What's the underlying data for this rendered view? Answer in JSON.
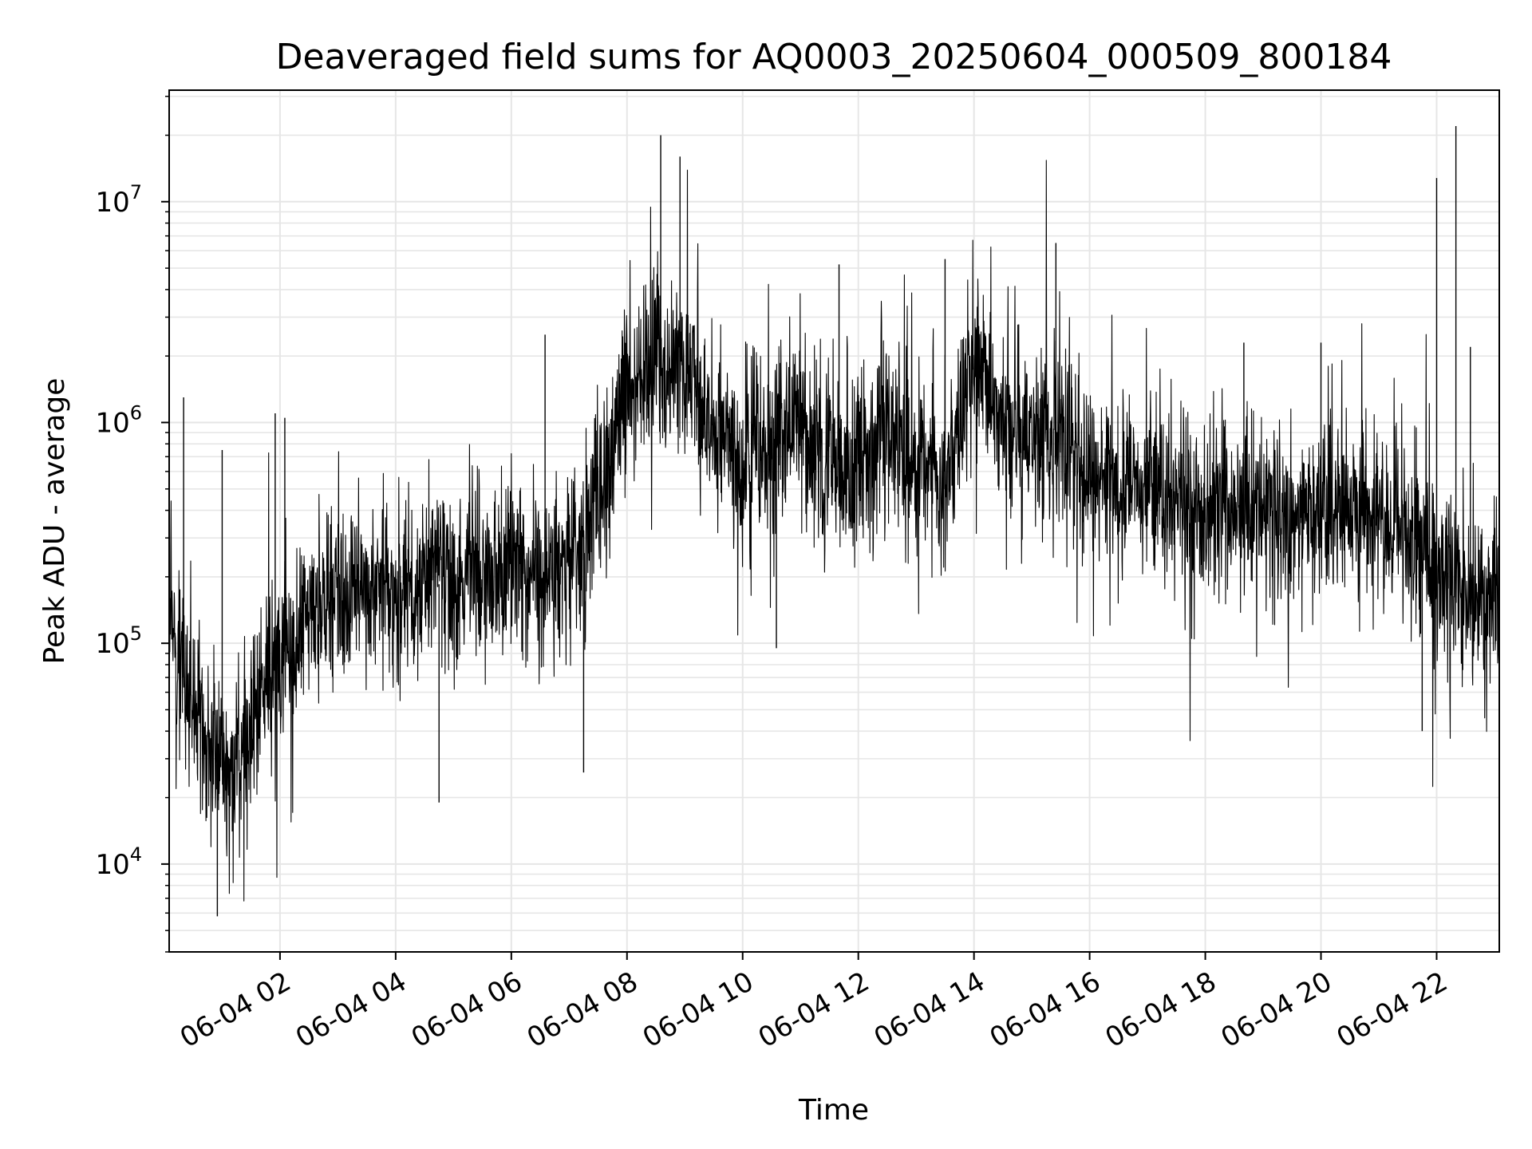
{
  "chart_data": {
    "type": "line",
    "title": "Deaveraged field sums for AQ0003_20250604_000509_800184",
    "xlabel": "Time",
    "ylabel": "Peak ADU - average",
    "yscale": "log",
    "ylim": [
      4000,
      32000000
    ],
    "xlim": [
      "2025-06-04 00:05",
      "2025-06-04 23:05"
    ],
    "grid": true,
    "line_color": "#000000",
    "grid_color": "#e6e6e6",
    "x_tick_labels": [
      "06-04 02",
      "06-04 04",
      "06-04 06",
      "06-04 08",
      "06-04 10",
      "06-04 12",
      "06-04 14",
      "06-04 16",
      "06-04 18",
      "06-04 20",
      "06-04 22"
    ],
    "x_tick_times": [
      "2025-06-04 02:00",
      "2025-06-04 04:00",
      "2025-06-04 06:00",
      "2025-06-04 08:00",
      "2025-06-04 10:00",
      "2025-06-04 12:00",
      "2025-06-04 14:00",
      "2025-06-04 16:00",
      "2025-06-04 18:00",
      "2025-06-04 20:00",
      "2025-06-04 22:00"
    ],
    "y_ticks": [
      {
        "value": 10000,
        "base": "10",
        "exp": "4"
      },
      {
        "value": 100000,
        "base": "10",
        "exp": "5"
      },
      {
        "value": 1000000,
        "base": "10",
        "exp": "6"
      },
      {
        "value": 10000000,
        "base": "10",
        "exp": "7"
      }
    ],
    "series": [
      {
        "x": [
          "2025-06-04 00:05",
          "2025-06-04 00:20",
          "2025-06-04 00:35",
          "2025-06-04 00:50",
          "2025-06-04 01:05",
          "2025-06-04 01:20",
          "2025-06-04 01:35",
          "2025-06-04 01:50",
          "2025-06-04 02:10",
          "2025-06-04 02:30",
          "2025-06-04 03:00",
          "2025-06-04 03:30",
          "2025-06-04 04:00",
          "2025-06-04 04:30",
          "2025-06-04 05:00",
          "2025-06-04 05:30",
          "2025-06-04 06:00",
          "2025-06-04 06:30",
          "2025-06-04 07:00",
          "2025-06-04 07:20",
          "2025-06-04 07:40",
          "2025-06-04 08:00",
          "2025-06-04 08:30",
          "2025-06-04 09:00",
          "2025-06-04 09:30",
          "2025-06-04 10:00",
          "2025-06-04 10:30",
          "2025-06-04 11:00",
          "2025-06-04 11:30",
          "2025-06-04 12:00",
          "2025-06-04 12:30",
          "2025-06-04 13:00",
          "2025-06-04 13:30",
          "2025-06-04 14:00",
          "2025-06-04 14:30",
          "2025-06-04 15:00",
          "2025-06-04 15:30",
          "2025-06-04 16:00",
          "2025-06-04 16:30",
          "2025-06-04 17:00",
          "2025-06-04 17:30",
          "2025-06-04 18:00",
          "2025-06-04 18:30",
          "2025-06-04 19:00",
          "2025-06-04 19:30",
          "2025-06-04 20:00",
          "2025-06-04 20:30",
          "2025-06-04 21:00",
          "2025-06-04 21:30",
          "2025-06-04 22:00",
          "2025-06-04 22:20",
          "2025-06-04 22:40",
          "2025-06-04 23:05"
        ],
        "y": [
          150000,
          70000,
          40000,
          30000,
          25000,
          30000,
          50000,
          70000,
          100000,
          130000,
          150000,
          170000,
          160000,
          180000,
          190000,
          200000,
          210000,
          230000,
          260000,
          330000,
          600000,
          1500000,
          1900000,
          1700000,
          900000,
          600000,
          800000,
          1000000,
          700000,
          600000,
          900000,
          700000,
          500000,
          2000000,
          1000000,
          800000,
          900000,
          600000,
          500000,
          500000,
          450000,
          400000,
          400000,
          380000,
          370000,
          380000,
          380000,
          400000,
          300000,
          220000,
          180000,
          160000,
          160000
        ],
        "spikes": [
          {
            "x": "2025-06-04 00:20",
            "y": 1300000
          },
          {
            "x": "2025-06-04 00:55",
            "y": 5800
          },
          {
            "x": "2025-06-04 01:00",
            "y": 750000
          },
          {
            "x": "2025-06-04 01:55",
            "y": 1100000
          },
          {
            "x": "2025-06-04 02:05",
            "y": 1050000
          },
          {
            "x": "2025-06-04 04:45",
            "y": 19000
          },
          {
            "x": "2025-06-04 06:35",
            "y": 2500000
          },
          {
            "x": "2025-06-04 07:15",
            "y": 26000
          },
          {
            "x": "2025-06-04 08:35",
            "y": 20000000
          },
          {
            "x": "2025-06-04 08:55",
            "y": 16000000
          },
          {
            "x": "2025-06-04 10:35",
            "y": 95000
          },
          {
            "x": "2025-06-04 11:40",
            "y": 5200000
          },
          {
            "x": "2025-06-04 13:30",
            "y": 5500000
          },
          {
            "x": "2025-06-04 15:25",
            "y": 6500000
          },
          {
            "x": "2025-06-04 18:40",
            "y": 2300000
          },
          {
            "x": "2025-06-04 20:00",
            "y": 2300000
          },
          {
            "x": "2025-06-04 21:45",
            "y": 40000
          },
          {
            "x": "2025-06-04 22:00",
            "y": 12800000
          },
          {
            "x": "2025-06-04 22:20",
            "y": 22000000
          },
          {
            "x": "2025-06-04 22:35",
            "y": 2200000
          }
        ]
      }
    ]
  }
}
